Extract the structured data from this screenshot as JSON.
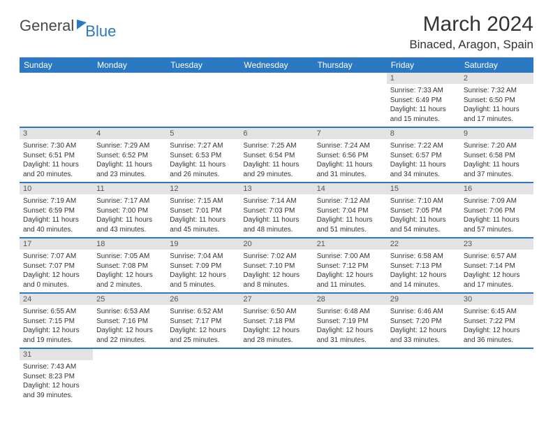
{
  "brand": {
    "part1": "General",
    "part2": "Blue"
  },
  "title": "March 2024",
  "location": "Binaced, Aragon, Spain",
  "colors": {
    "accent": "#2b79c2",
    "header_gray": "#e3e3e3",
    "text": "#333333"
  },
  "dow": [
    "Sunday",
    "Monday",
    "Tuesday",
    "Wednesday",
    "Thursday",
    "Friday",
    "Saturday"
  ],
  "weeks": [
    [
      null,
      null,
      null,
      null,
      null,
      {
        "n": "1",
        "sr": "Sunrise: 7:33 AM",
        "ss": "Sunset: 6:49 PM",
        "dl": "Daylight: 11 hours and 15 minutes."
      },
      {
        "n": "2",
        "sr": "Sunrise: 7:32 AM",
        "ss": "Sunset: 6:50 PM",
        "dl": "Daylight: 11 hours and 17 minutes."
      }
    ],
    [
      {
        "n": "3",
        "sr": "Sunrise: 7:30 AM",
        "ss": "Sunset: 6:51 PM",
        "dl": "Daylight: 11 hours and 20 minutes."
      },
      {
        "n": "4",
        "sr": "Sunrise: 7:29 AM",
        "ss": "Sunset: 6:52 PM",
        "dl": "Daylight: 11 hours and 23 minutes."
      },
      {
        "n": "5",
        "sr": "Sunrise: 7:27 AM",
        "ss": "Sunset: 6:53 PM",
        "dl": "Daylight: 11 hours and 26 minutes."
      },
      {
        "n": "6",
        "sr": "Sunrise: 7:25 AM",
        "ss": "Sunset: 6:54 PM",
        "dl": "Daylight: 11 hours and 29 minutes."
      },
      {
        "n": "7",
        "sr": "Sunrise: 7:24 AM",
        "ss": "Sunset: 6:56 PM",
        "dl": "Daylight: 11 hours and 31 minutes."
      },
      {
        "n": "8",
        "sr": "Sunrise: 7:22 AM",
        "ss": "Sunset: 6:57 PM",
        "dl": "Daylight: 11 hours and 34 minutes."
      },
      {
        "n": "9",
        "sr": "Sunrise: 7:20 AM",
        "ss": "Sunset: 6:58 PM",
        "dl": "Daylight: 11 hours and 37 minutes."
      }
    ],
    [
      {
        "n": "10",
        "sr": "Sunrise: 7:19 AM",
        "ss": "Sunset: 6:59 PM",
        "dl": "Daylight: 11 hours and 40 minutes."
      },
      {
        "n": "11",
        "sr": "Sunrise: 7:17 AM",
        "ss": "Sunset: 7:00 PM",
        "dl": "Daylight: 11 hours and 43 minutes."
      },
      {
        "n": "12",
        "sr": "Sunrise: 7:15 AM",
        "ss": "Sunset: 7:01 PM",
        "dl": "Daylight: 11 hours and 45 minutes."
      },
      {
        "n": "13",
        "sr": "Sunrise: 7:14 AM",
        "ss": "Sunset: 7:03 PM",
        "dl": "Daylight: 11 hours and 48 minutes."
      },
      {
        "n": "14",
        "sr": "Sunrise: 7:12 AM",
        "ss": "Sunset: 7:04 PM",
        "dl": "Daylight: 11 hours and 51 minutes."
      },
      {
        "n": "15",
        "sr": "Sunrise: 7:10 AM",
        "ss": "Sunset: 7:05 PM",
        "dl": "Daylight: 11 hours and 54 minutes."
      },
      {
        "n": "16",
        "sr": "Sunrise: 7:09 AM",
        "ss": "Sunset: 7:06 PM",
        "dl": "Daylight: 11 hours and 57 minutes."
      }
    ],
    [
      {
        "n": "17",
        "sr": "Sunrise: 7:07 AM",
        "ss": "Sunset: 7:07 PM",
        "dl": "Daylight: 12 hours and 0 minutes."
      },
      {
        "n": "18",
        "sr": "Sunrise: 7:05 AM",
        "ss": "Sunset: 7:08 PM",
        "dl": "Daylight: 12 hours and 2 minutes."
      },
      {
        "n": "19",
        "sr": "Sunrise: 7:04 AM",
        "ss": "Sunset: 7:09 PM",
        "dl": "Daylight: 12 hours and 5 minutes."
      },
      {
        "n": "20",
        "sr": "Sunrise: 7:02 AM",
        "ss": "Sunset: 7:10 PM",
        "dl": "Daylight: 12 hours and 8 minutes."
      },
      {
        "n": "21",
        "sr": "Sunrise: 7:00 AM",
        "ss": "Sunset: 7:12 PM",
        "dl": "Daylight: 12 hours and 11 minutes."
      },
      {
        "n": "22",
        "sr": "Sunrise: 6:58 AM",
        "ss": "Sunset: 7:13 PM",
        "dl": "Daylight: 12 hours and 14 minutes."
      },
      {
        "n": "23",
        "sr": "Sunrise: 6:57 AM",
        "ss": "Sunset: 7:14 PM",
        "dl": "Daylight: 12 hours and 17 minutes."
      }
    ],
    [
      {
        "n": "24",
        "sr": "Sunrise: 6:55 AM",
        "ss": "Sunset: 7:15 PM",
        "dl": "Daylight: 12 hours and 19 minutes."
      },
      {
        "n": "25",
        "sr": "Sunrise: 6:53 AM",
        "ss": "Sunset: 7:16 PM",
        "dl": "Daylight: 12 hours and 22 minutes."
      },
      {
        "n": "26",
        "sr": "Sunrise: 6:52 AM",
        "ss": "Sunset: 7:17 PM",
        "dl": "Daylight: 12 hours and 25 minutes."
      },
      {
        "n": "27",
        "sr": "Sunrise: 6:50 AM",
        "ss": "Sunset: 7:18 PM",
        "dl": "Daylight: 12 hours and 28 minutes."
      },
      {
        "n": "28",
        "sr": "Sunrise: 6:48 AM",
        "ss": "Sunset: 7:19 PM",
        "dl": "Daylight: 12 hours and 31 minutes."
      },
      {
        "n": "29",
        "sr": "Sunrise: 6:46 AM",
        "ss": "Sunset: 7:20 PM",
        "dl": "Daylight: 12 hours and 33 minutes."
      },
      {
        "n": "30",
        "sr": "Sunrise: 6:45 AM",
        "ss": "Sunset: 7:22 PM",
        "dl": "Daylight: 12 hours and 36 minutes."
      }
    ],
    [
      {
        "n": "31",
        "sr": "Sunrise: 7:43 AM",
        "ss": "Sunset: 8:23 PM",
        "dl": "Daylight: 12 hours and 39 minutes."
      },
      null,
      null,
      null,
      null,
      null,
      null
    ]
  ]
}
